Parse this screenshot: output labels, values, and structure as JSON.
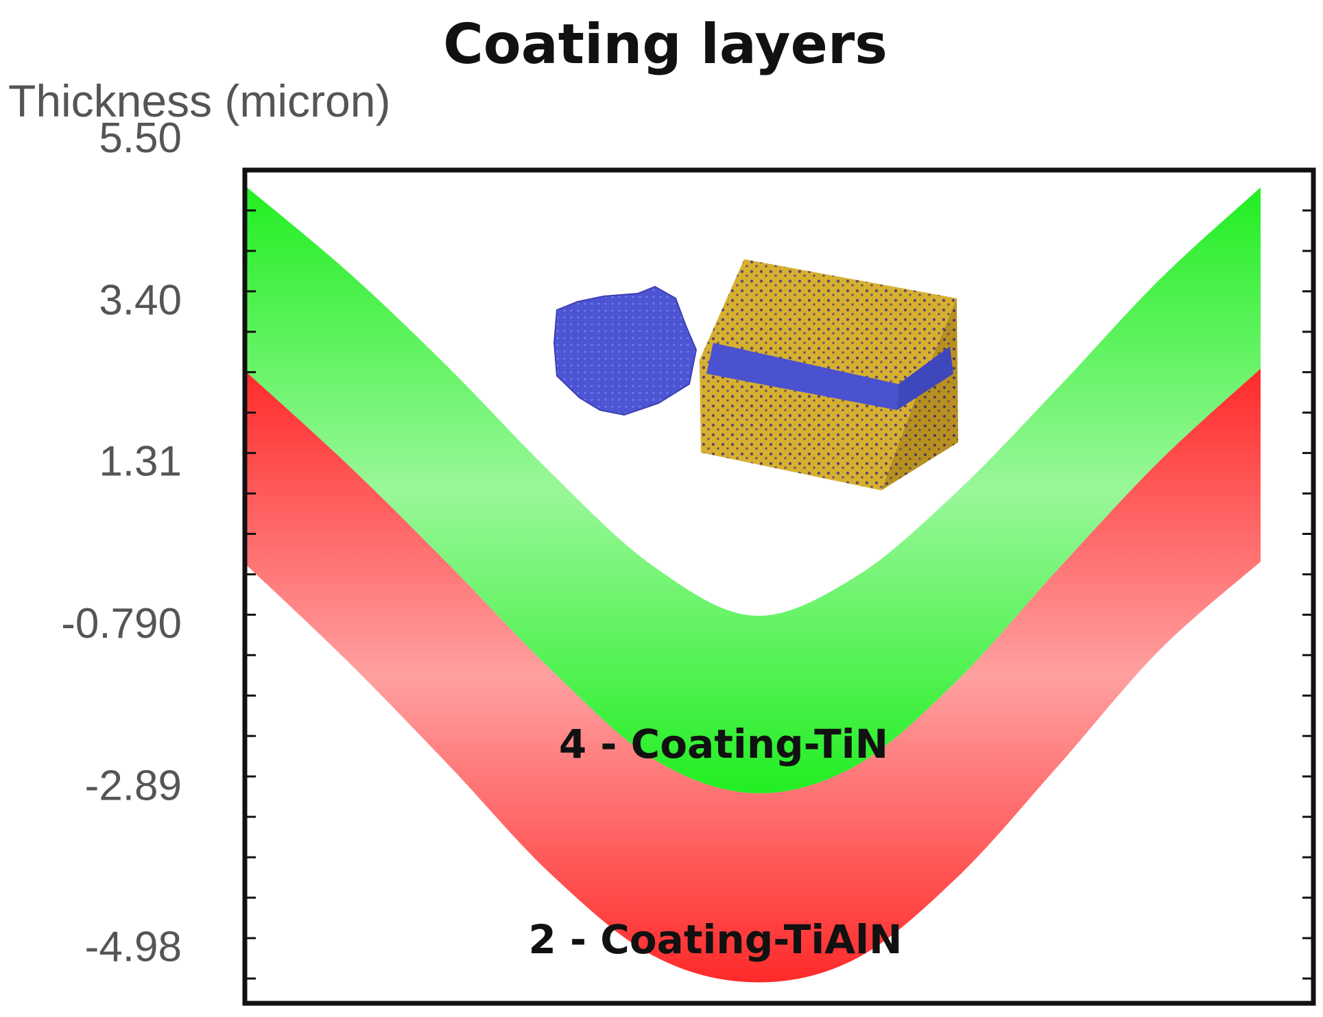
{
  "chart_data": {
    "type": "area",
    "title": "Coating layers",
    "ylabel": "Thickness (micron)",
    "xlabel": "",
    "ylim": [
      -5.5,
      5.5
    ],
    "yticks": [
      "5.50",
      "3.40",
      "1.31",
      "-0.790",
      "-2.89",
      "-4.98"
    ],
    "ytick_values": [
      5.5,
      3.4,
      1.31,
      -0.79,
      -2.89,
      -4.98
    ],
    "grid": false,
    "layers": [
      {
        "name": "4 - Coating-TiN",
        "color": "#22ee22",
        "x": [
          0,
          0.1,
          0.2,
          0.3,
          0.4,
          0.5,
          0.6,
          0.7,
          0.8,
          0.9,
          1.0
        ],
        "upper": [
          4.85,
          3.75,
          2.5,
          1.15,
          -0.05,
          -0.7,
          -0.2,
          0.9,
          2.25,
          3.65,
          4.85
        ],
        "lower": [
          2.45,
          1.25,
          -0.05,
          -1.4,
          -2.55,
          -3.0,
          -2.65,
          -1.55,
          -0.1,
          1.3,
          2.5
        ]
      },
      {
        "name": "2 - Coating-TiAlN",
        "color": "#ff2222",
        "x": [
          0,
          0.1,
          0.2,
          0.3,
          0.4,
          0.5,
          0.6,
          0.7,
          0.8,
          0.9,
          1.0
        ],
        "upper": [
          2.45,
          1.25,
          -0.05,
          -1.4,
          -2.55,
          -3.0,
          -2.65,
          -1.55,
          -0.1,
          1.3,
          2.5
        ],
        "lower": [
          -0.05,
          -1.3,
          -2.65,
          -4.05,
          -5.1,
          -5.45,
          -5.15,
          -4.1,
          -2.65,
          -1.15,
          0.0
        ]
      }
    ]
  },
  "inset": {
    "icon": "coated-insert-mesh-icon",
    "colors": {
      "coating": "#4a52d0",
      "substrate": "#d4ac2c"
    }
  }
}
